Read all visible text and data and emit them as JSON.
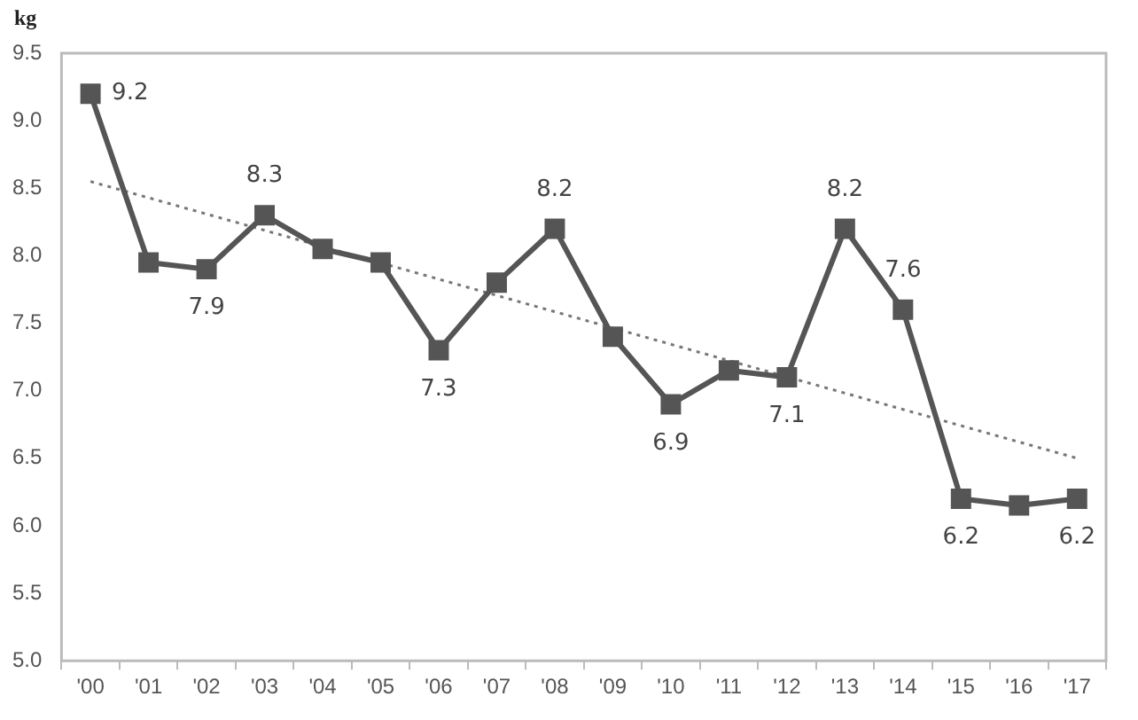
{
  "chart_data": {
    "type": "line",
    "ylabel": "kg",
    "categories": [
      "'00",
      "'01",
      "'02",
      "'03",
      "'04",
      "'05",
      "'06",
      "'07",
      "'08",
      "'09",
      "'10",
      "'11",
      "'12",
      "'13",
      "'14",
      "'15",
      "'16",
      "'17"
    ],
    "series": [
      {
        "color": "#555555",
        "values": [
          9.2,
          7.95,
          7.9,
          8.3,
          8.05,
          7.95,
          7.3,
          7.8,
          8.2,
          7.4,
          6.9,
          7.15,
          7.1,
          8.2,
          7.6,
          6.2,
          6.15,
          6.2
        ],
        "value_labels": [
          "9.2",
          null,
          "7.9",
          "8.3",
          null,
          null,
          "7.3",
          null,
          "8.2",
          null,
          "6.9",
          null,
          "7.1",
          "8.2",
          "7.6",
          "6.2",
          null,
          "6.2"
        ]
      },
      {
        "type": "line",
        "color": "#777777",
        "x": [
          "'00",
          "'17"
        ],
        "values": [
          8.55,
          6.5
        ],
        "marker": "none",
        "line_style": "dotted"
      }
    ],
    "ylim": [
      5.0,
      9.5
    ],
    "yticks": [
      {
        "value": 5,
        "label": "5.0"
      },
      "5.5",
      {
        "value": 6,
        "label": "6.0"
      },
      6.5,
      {
        "value": 7,
        "label": "7.0"
      },
      7.5,
      {
        "value": 8,
        "label": "8.0"
      },
      8.5,
      {
        "value": 9,
        "label": "9.0"
      },
      9.5
    ],
    "grid": false,
    "legend": false,
    "marker": "square",
    "line_style": "solid"
  }
}
